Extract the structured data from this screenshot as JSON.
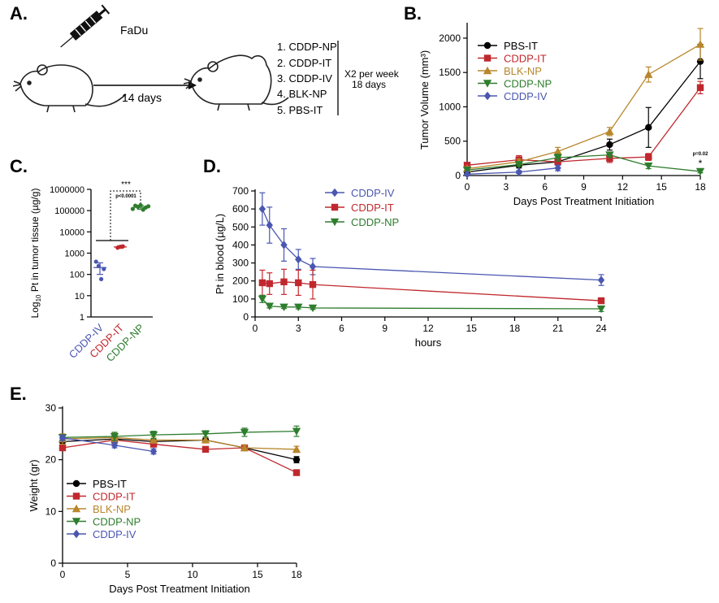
{
  "colors": {
    "pbs_it": "#000000",
    "cddp_it": "#c0282d",
    "blk_np": "#b8862b",
    "cddp_np": "#2e7d2e",
    "cddp_iv": "#4a56b0"
  },
  "panel_a": {
    "letter": "A.",
    "cell_line": "FaDu",
    "days_label": "14 days",
    "treatments": [
      "1. CDDP-NP",
      "2. CDDP-IT",
      "3. CDDP-IV",
      "4. BLK-NP",
      "5. PBS-IT"
    ],
    "schedule_line1": "X2 per week",
    "schedule_line2": "18 days",
    "mouse_icon": "mouse-icon",
    "syringe_icon": "syringe-icon"
  },
  "panel_b": {
    "letter": "B.",
    "annotation_p": "p=0.02",
    "annotation_star": "*"
  },
  "panel_c": {
    "letter": "C.",
    "sig_stars": "***",
    "sig_p": "p<0.0001"
  },
  "panel_d": {
    "letter": "D."
  },
  "panel_e": {
    "letter": "E."
  },
  "chart_data": [
    {
      "id": "B",
      "type": "line",
      "xlabel": "Days Post Treatment Initiation",
      "ylabel": "Tumor Volume (mm³)",
      "xlim": [
        0,
        18
      ],
      "ylim": [
        0,
        2200
      ],
      "xticks": [
        0,
        3,
        6,
        9,
        12,
        15,
        18
      ],
      "yticks": [
        0,
        500,
        1000,
        1500,
        2000
      ],
      "legend_position": "top-left",
      "series": [
        {
          "name": "PBS-IT",
          "key": "pbs_it",
          "marker": "circle",
          "x": [
            0,
            4,
            7,
            11,
            14,
            18
          ],
          "y": [
            50,
            150,
            200,
            450,
            700,
            1660
          ],
          "err": [
            20,
            40,
            50,
            80,
            290,
            250
          ]
        },
        {
          "name": "CDDP-IT",
          "key": "cddp_it",
          "marker": "square",
          "x": [
            0,
            4,
            7,
            11,
            14,
            18
          ],
          "y": [
            150,
            230,
            200,
            250,
            270,
            1280
          ],
          "err": [
            40,
            60,
            50,
            60,
            50,
            90
          ]
        },
        {
          "name": "BLK-NP",
          "key": "blk_np",
          "marker": "triangle",
          "x": [
            0,
            4,
            7,
            11,
            14,
            18
          ],
          "y": [
            100,
            200,
            350,
            640,
            1470,
            1910
          ],
          "err": [
            30,
            40,
            60,
            60,
            110,
            230
          ]
        },
        {
          "name": "CDDP-NP",
          "key": "cddp_np",
          "marker": "triangle-down",
          "x": [
            0,
            4,
            7,
            11,
            14,
            18
          ],
          "y": [
            80,
            160,
            260,
            300,
            140,
            60
          ],
          "err": [
            20,
            30,
            50,
            40,
            40,
            20
          ]
        },
        {
          "name": "CDDP-IV",
          "key": "cddp_iv",
          "marker": "diamond",
          "x": [
            0,
            4,
            7
          ],
          "y": [
            20,
            50,
            110
          ],
          "err": [
            10,
            20,
            40
          ]
        }
      ]
    },
    {
      "id": "C",
      "type": "scatter",
      "ylabel": "Log10 Pt in tumor tissue (µg/g)",
      "ylabel_main": "Log",
      "ylabel_sub": "10",
      "ylabel_rest": " Pt in tumor tissue (µg/g)",
      "ylog": true,
      "ylim": [
        1,
        1000000
      ],
      "ytick_labels": [
        "1",
        "10",
        "100",
        "1000",
        "10000",
        "100000",
        "1000000"
      ],
      "categories": [
        "CDDP-IV",
        "CDDP-IT",
        "CDDP-NP"
      ],
      "category_keys": [
        "cddp_iv",
        "cddp_it",
        "cddp_np"
      ],
      "points": [
        [
          400,
          250,
          60,
          180
        ],
        [
          1800,
          2000,
          2100
        ],
        [
          120000,
          170000,
          150000,
          180000,
          110000,
          140000,
          160000
        ]
      ],
      "means": [
        210,
        1950,
        145000
      ],
      "errs_low": [
        100,
        1700,
        115000
      ],
      "errs_high": [
        350,
        2200,
        175000
      ]
    },
    {
      "id": "D",
      "type": "line",
      "xlabel": "hours",
      "ylabel": "Pt in blood (µg/L)",
      "xlim": [
        0,
        24
      ],
      "ylim": [
        0,
        700
      ],
      "xticks": [
        0,
        3,
        6,
        9,
        12,
        15,
        18,
        21,
        24
      ],
      "yticks": [
        0,
        100,
        200,
        300,
        400,
        500,
        600,
        700
      ],
      "legend_position": "top-center",
      "series": [
        {
          "name": "CDDP-IV",
          "key": "cddp_iv",
          "marker": "diamond",
          "x": [
            0.5,
            1,
            2,
            3,
            4,
            24
          ],
          "y": [
            600,
            510,
            400,
            320,
            280,
            205
          ],
          "err": [
            90,
            100,
            90,
            55,
            45,
            30
          ]
        },
        {
          "name": "CDDP-IT",
          "key": "cddp_it",
          "marker": "square",
          "x": [
            0.5,
            1,
            2,
            3,
            4,
            24
          ],
          "y": [
            190,
            185,
            195,
            190,
            180,
            90
          ],
          "err": [
            70,
            60,
            70,
            70,
            80,
            15
          ]
        },
        {
          "name": "CDDP-NP",
          "key": "cddp_np",
          "marker": "triangle-down",
          "x": [
            0.5,
            1,
            2,
            3,
            4,
            24
          ],
          "y": [
            100,
            60,
            55,
            55,
            50,
            45
          ],
          "err": [
            20,
            10,
            8,
            10,
            8,
            15
          ]
        }
      ]
    },
    {
      "id": "E",
      "type": "line",
      "xlabel": "Days Post Treatment Initiation",
      "ylabel": "Weight (gr)",
      "xlim": [
        0,
        18
      ],
      "ylim": [
        0,
        30
      ],
      "xticks": [
        0,
        5,
        10,
        15,
        18
      ],
      "yticks": [
        0,
        10,
        20,
        30
      ],
      "legend_position": "bottom-left",
      "series": [
        {
          "name": "PBS-IT",
          "key": "pbs_it",
          "marker": "circle",
          "x": [
            0,
            4,
            7,
            11,
            14,
            18
          ],
          "y": [
            23.5,
            24.0,
            23.5,
            23.8,
            22.3,
            20.0
          ],
          "err": [
            0.6,
            0.6,
            0.5,
            0.5,
            0.5,
            0.6
          ]
        },
        {
          "name": "CDDP-IT",
          "key": "cddp_it",
          "marker": "square",
          "x": [
            0,
            4,
            7,
            11,
            14,
            18
          ],
          "y": [
            22.3,
            23.8,
            23.0,
            22.0,
            22.3,
            17.5
          ],
          "err": [
            0.5,
            0.6,
            0.5,
            0.5,
            0.5,
            0.4
          ]
        },
        {
          "name": "BLK-NP",
          "key": "blk_np",
          "marker": "triangle",
          "x": [
            0,
            4,
            7,
            11,
            14,
            18
          ],
          "y": [
            24.0,
            24.3,
            23.8,
            23.8,
            22.3,
            22.0
          ],
          "err": [
            1.0,
            0.8,
            0.6,
            0.5,
            0.5,
            0.6
          ]
        },
        {
          "name": "CDDP-NP",
          "key": "cddp_np",
          "marker": "triangle-down",
          "x": [
            0,
            4,
            7,
            11,
            14,
            18
          ],
          "y": [
            24.3,
            24.5,
            24.8,
            25.0,
            25.3,
            25.5
          ],
          "err": [
            0.5,
            0.8,
            0.7,
            0.6,
            0.8,
            1.0
          ]
        },
        {
          "name": "CDDP-IV",
          "key": "cddp_iv",
          "marker": "diamond",
          "x": [
            0,
            4,
            7
          ],
          "y": [
            24.2,
            22.8,
            21.6
          ],
          "err": [
            0.5,
            0.5,
            0.5
          ]
        }
      ]
    }
  ]
}
